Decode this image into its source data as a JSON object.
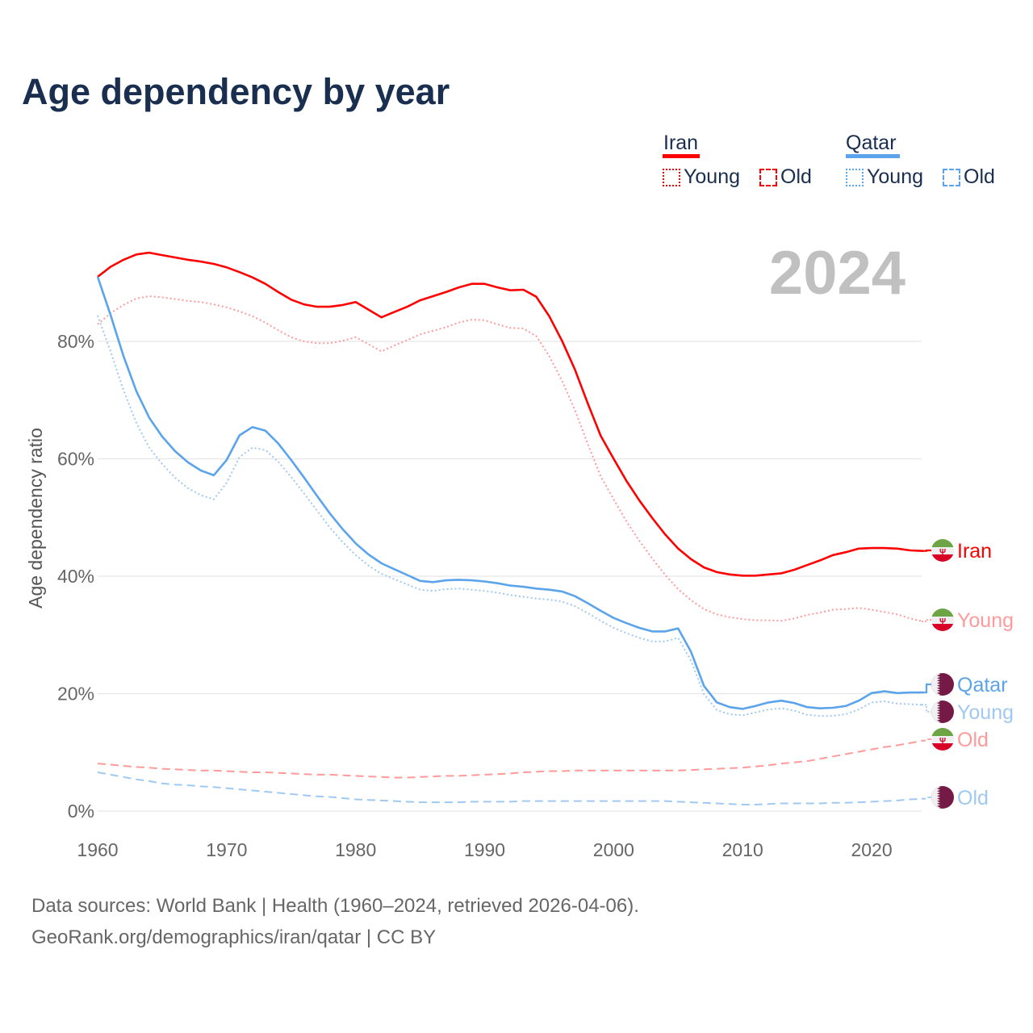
{
  "chart_data": {
    "type": "line",
    "title": "Age dependency by year",
    "current_year": "2024",
    "xlabel": "",
    "ylabel": "Age dependency ratio",
    "xlim": [
      1960,
      2024
    ],
    "ylim": [
      0,
      100
    ],
    "x_ticks": [
      1960,
      1970,
      1980,
      1990,
      2000,
      2010,
      2020
    ],
    "x_tick_labels": [
      "1960",
      "1970",
      "1980",
      "1990",
      "2000",
      "2010",
      "2020"
    ],
    "y_ticks": [
      0,
      20,
      40,
      60,
      80
    ],
    "y_tick_labels": [
      "0%",
      "20%",
      "40%",
      "60%",
      "80%"
    ],
    "grid": true,
    "x_start": 1960,
    "legend": {
      "placement": "top-right",
      "groups": [
        {
          "name": "Iran",
          "color": "#ff0000",
          "items": [
            "Young",
            "Old"
          ]
        },
        {
          "name": "Qatar",
          "color": "#5ba4ec",
          "items": [
            "Young",
            "Old"
          ]
        }
      ]
    },
    "series": [
      {
        "name": "Iran",
        "end_label": "Iran",
        "flag": "iran",
        "color": "#ff0000",
        "style": "solid",
        "values": [
          91.0,
          92.7,
          93.9,
          94.8,
          95.1,
          94.7,
          94.3,
          93.9,
          93.6,
          93.2,
          92.6,
          91.8,
          90.9,
          89.8,
          88.4,
          87.1,
          86.3,
          85.9,
          85.9,
          86.2,
          86.7,
          85.4,
          84.1,
          85.0,
          85.9,
          87.0,
          87.7,
          88.4,
          89.2,
          89.8,
          89.8,
          89.2,
          88.7,
          88.8,
          87.6,
          84.3,
          80.1,
          75.2,
          69.4,
          63.9,
          60.0,
          56.2,
          52.9,
          49.9,
          47.1,
          44.7,
          42.9,
          41.5,
          40.7,
          40.3,
          40.1,
          40.1,
          40.3,
          40.5,
          41.1,
          41.9,
          42.7,
          43.6,
          44.1,
          44.7,
          44.8,
          44.8,
          44.7,
          44.4,
          44.3
        ]
      },
      {
        "name": "Iran Young",
        "end_label": "Young",
        "flag": "iran",
        "color": "#ff9a9a",
        "style": "dotted",
        "values": [
          82.9,
          84.8,
          86.2,
          87.3,
          87.7,
          87.5,
          87.2,
          86.9,
          86.7,
          86.3,
          85.8,
          85.1,
          84.3,
          83.2,
          81.9,
          80.7,
          80.0,
          79.7,
          79.7,
          80.1,
          80.7,
          79.5,
          78.3,
          79.3,
          80.2,
          81.2,
          81.8,
          82.4,
          83.2,
          83.7,
          83.6,
          82.9,
          82.3,
          82.2,
          80.9,
          77.5,
          73.3,
          68.3,
          62.5,
          57.0,
          53.1,
          49.3,
          46.0,
          43.0,
          40.2,
          37.8,
          35.9,
          34.4,
          33.5,
          33.0,
          32.7,
          32.5,
          32.5,
          32.4,
          32.8,
          33.4,
          33.8,
          34.3,
          34.4,
          34.6,
          34.3,
          33.9,
          33.5,
          32.8,
          32.3
        ]
      },
      {
        "name": "Iran Old",
        "end_label": "Old",
        "flag": "iran",
        "color": "#ff9a9a",
        "style": "dashed",
        "values": [
          8.1,
          7.9,
          7.7,
          7.5,
          7.4,
          7.2,
          7.1,
          7.0,
          6.9,
          6.9,
          6.8,
          6.7,
          6.6,
          6.6,
          6.5,
          6.4,
          6.3,
          6.2,
          6.2,
          6.1,
          6.0,
          5.9,
          5.8,
          5.7,
          5.7,
          5.8,
          5.9,
          6.0,
          6.0,
          6.1,
          6.2,
          6.3,
          6.4,
          6.6,
          6.7,
          6.8,
          6.8,
          6.9,
          6.9,
          6.9,
          6.9,
          6.9,
          6.9,
          6.9,
          6.9,
          6.9,
          7.0,
          7.1,
          7.2,
          7.3,
          7.4,
          7.6,
          7.8,
          8.1,
          8.3,
          8.5,
          8.9,
          9.3,
          9.7,
          10.1,
          10.5,
          10.9,
          11.2,
          11.6,
          12.0
        ]
      },
      {
        "name": "Qatar",
        "end_label": "Qatar",
        "flag": "qatar",
        "color": "#5ba4ec",
        "style": "solid",
        "values": [
          91.0,
          84.5,
          77.5,
          71.5,
          67.0,
          63.8,
          61.3,
          59.4,
          58.0,
          57.2,
          59.8,
          64.0,
          65.4,
          64.8,
          62.6,
          59.8,
          56.8,
          53.7,
          50.7,
          48.0,
          45.6,
          43.7,
          42.2,
          41.2,
          40.2,
          39.2,
          39.0,
          39.3,
          39.4,
          39.3,
          39.1,
          38.8,
          38.4,
          38.2,
          37.9,
          37.7,
          37.4,
          36.6,
          35.4,
          34.1,
          32.9,
          32.0,
          31.2,
          30.6,
          30.6,
          31.1,
          27.1,
          21.3,
          18.5,
          17.7,
          17.4,
          17.9,
          18.5,
          18.8,
          18.4,
          17.7,
          17.5,
          17.6,
          17.9,
          18.8,
          20.1,
          20.4,
          20.1,
          20.2,
          20.2
        ]
      },
      {
        "name": "Qatar Young",
        "end_label": "Young",
        "flag": "qatar",
        "color": "#9fc9f3",
        "style": "dotted",
        "values": [
          84.4,
          78.3,
          71.7,
          66.1,
          61.9,
          59.1,
          56.8,
          55.0,
          53.8,
          53.1,
          55.9,
          60.3,
          61.9,
          61.5,
          59.5,
          56.9,
          54.1,
          51.2,
          48.3,
          45.8,
          43.6,
          41.8,
          40.4,
          39.5,
          38.6,
          37.7,
          37.5,
          37.8,
          37.9,
          37.7,
          37.5,
          37.2,
          36.8,
          36.5,
          36.2,
          36.0,
          35.7,
          34.9,
          33.7,
          32.4,
          31.2,
          30.3,
          29.5,
          28.9,
          28.9,
          29.5,
          25.6,
          19.9,
          17.2,
          16.5,
          16.3,
          16.8,
          17.3,
          17.5,
          17.1,
          16.4,
          16.2,
          16.2,
          16.5,
          17.3,
          18.5,
          18.7,
          18.3,
          18.2,
          18.1
        ]
      },
      {
        "name": "Qatar Old",
        "end_label": "Old",
        "flag": "qatar",
        "color": "#9fc9f3",
        "style": "dashed",
        "values": [
          6.6,
          6.2,
          5.8,
          5.4,
          5.1,
          4.7,
          4.5,
          4.4,
          4.2,
          4.1,
          3.9,
          3.7,
          3.5,
          3.3,
          3.1,
          2.9,
          2.7,
          2.5,
          2.4,
          2.2,
          2.0,
          1.9,
          1.8,
          1.7,
          1.6,
          1.5,
          1.5,
          1.5,
          1.5,
          1.6,
          1.6,
          1.6,
          1.6,
          1.7,
          1.7,
          1.7,
          1.7,
          1.7,
          1.7,
          1.7,
          1.7,
          1.7,
          1.7,
          1.7,
          1.7,
          1.6,
          1.5,
          1.4,
          1.3,
          1.2,
          1.1,
          1.1,
          1.2,
          1.3,
          1.3,
          1.3,
          1.3,
          1.4,
          1.4,
          1.5,
          1.6,
          1.7,
          1.8,
          2.0,
          2.1
        ]
      }
    ]
  },
  "footer": {
    "line1": "Data sources: World Bank | Health (1960–2024, retrieved 2026-04-06).",
    "line2": "GeoRank.org/demographics/iran/qatar | CC BY"
  }
}
